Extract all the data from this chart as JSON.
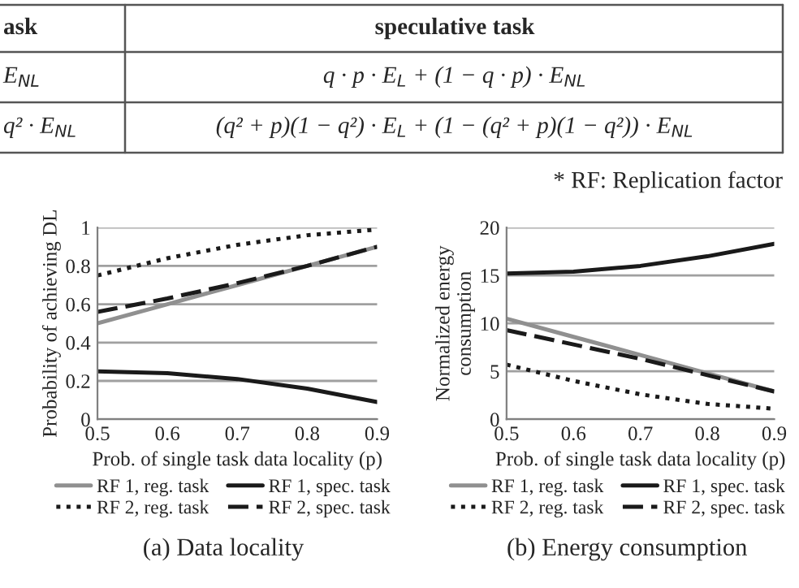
{
  "chart_data": [
    {
      "type": "other",
      "annotations": [
        "ask",
        "speculative task",
        "E$_{NL}$",
        "q · p · E$_{L}$ + (1 − q · p) · E$_{NL}$",
        "q² · E$_{NL}$",
        "(q² + p)(1 − q²) · E$_{L}$ + (1 − (q² + p)(1 − q²)) · E$_{NL}$",
        "* RF: Replication factor"
      ]
    },
    {
      "type": "line",
      "xlabel": "Prob. of single task data locality (p)",
      "ylabel": "Probability of achieving DL",
      "x": [
        0.5,
        0.6,
        0.7,
        0.8,
        0.9
      ],
      "xlim": [
        0.5,
        0.9
      ],
      "xticks": [
        0.5,
        0.6,
        0.7,
        0.8,
        0.9
      ],
      "ylim": [
        0,
        1
      ],
      "yticks": [
        0,
        0.2,
        0.4,
        0.6,
        0.8,
        1
      ],
      "grid": "y",
      "legend": "bottom",
      "annotations": [
        "(a) Data locality"
      ],
      "series": [
        {
          "name": "RF 1, reg. task",
          "color": "#909090",
          "line_style": "solid",
          "values": [
            0.5,
            0.6,
            0.7,
            0.8,
            0.9
          ]
        },
        {
          "name": "RF 1, spec. task",
          "color": "#1a1a1a",
          "line_style": "solid",
          "values": [
            0.25,
            0.24,
            0.21,
            0.16,
            0.09
          ]
        },
        {
          "name": "RF 2, reg. task",
          "color": "#1a1a1a",
          "line_style": "dotted",
          "values": [
            0.75,
            0.84,
            0.91,
            0.96,
            0.99
          ]
        },
        {
          "name": "RF 2, spec. task",
          "color": "#1a1a1a",
          "line_style": "dashed",
          "values": [
            0.56,
            0.63,
            0.71,
            0.8,
            0.9
          ]
        }
      ]
    },
    {
      "type": "line",
      "xlabel": "Prob. of single task data locality (p)",
      "ylabel": "Normalized energy\nconsumption",
      "x": [
        0.5,
        0.6,
        0.7,
        0.8,
        0.9
      ],
      "xlim": [
        0.5,
        0.9
      ],
      "xticks": [
        0.5,
        0.6,
        0.7,
        0.8,
        0.9
      ],
      "ylim": [
        0,
        20
      ],
      "yticks": [
        0,
        5,
        10,
        15,
        20
      ],
      "grid": "y",
      "legend": "bottom",
      "annotations": [
        "(b) Energy consumption"
      ],
      "series": [
        {
          "name": "RF 1, reg. task",
          "color": "#909090",
          "line_style": "solid",
          "values": [
            10.5,
            8.6,
            6.7,
            4.8,
            2.9
          ]
        },
        {
          "name": "RF 1, spec. task",
          "color": "#1a1a1a",
          "line_style": "solid",
          "values": [
            15.2,
            15.4,
            16.0,
            17.0,
            18.3
          ]
        },
        {
          "name": "RF 2, reg. task",
          "color": "#1a1a1a",
          "line_style": "dotted",
          "values": [
            5.7,
            4.0,
            2.6,
            1.6,
            1.1
          ]
        },
        {
          "name": "RF 2, spec. task",
          "color": "#1a1a1a",
          "line_style": "dashed",
          "values": [
            9.3,
            7.8,
            6.3,
            4.6,
            2.9
          ]
        }
      ]
    }
  ]
}
